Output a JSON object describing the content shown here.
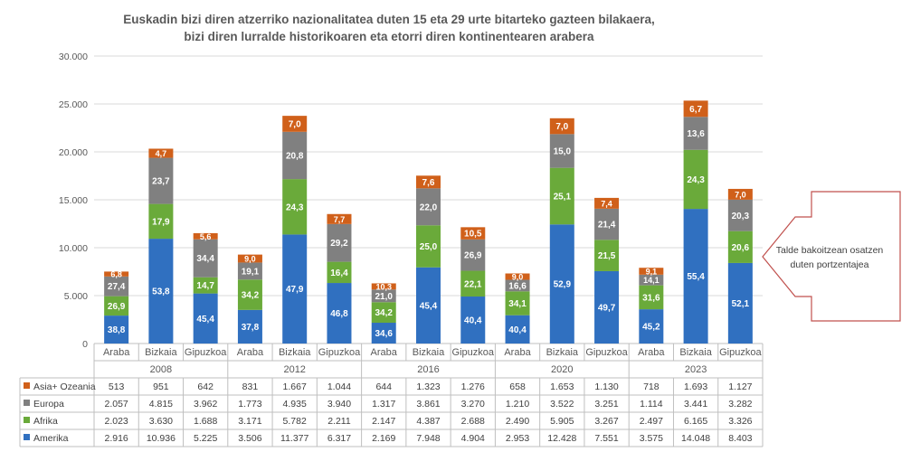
{
  "title_line1": "Euskadin bizi diren atzerriko nazionalitatea duten 15 eta 29 urte bitarteko gazteen bilakaera,",
  "title_line2": "bizi diren lurralde historikoaren eta etorri diren kontinentearen arabera",
  "callout_line1": "Talde bakoitzean osatzen",
  "callout_line2": "duten portzentajea",
  "colors": {
    "Amerika": "#3070c0",
    "Afrika": "#6aaa3a",
    "Europa": "#808080",
    "Asia+ Ozeania": "#d0601a",
    "grid": "#d9d9d9",
    "callout_border": "#c0504d"
  },
  "chart_data": {
    "type": "bar",
    "stacked": true,
    "ylim": [
      0,
      30000
    ],
    "yticks": [
      "0",
      "5.000",
      "10.000",
      "15.000",
      "20.000",
      "25.000",
      "30.000"
    ],
    "grid": true,
    "legend": "table-bottom",
    "years": [
      "2008",
      "2012",
      "2016",
      "2020",
      "2023"
    ],
    "categories": [
      "Araba",
      "Bizkaia",
      "Gipuzkoa",
      "Araba",
      "Bizkaia",
      "Gipuzkoa",
      "Araba",
      "Bizkaia",
      "Gipuzkoa",
      "Araba",
      "Bizkaia",
      "Gipuzkoa",
      "Araba",
      "Bizkaia",
      "Gipuzkoa"
    ],
    "series": [
      {
        "name": "Amerika",
        "values": [
          2916,
          10936,
          5225,
          3506,
          11377,
          6317,
          2169,
          7948,
          4904,
          2953,
          12428,
          7551,
          3575,
          14048,
          8403
        ],
        "display": [
          "2.916",
          "10.936",
          "5.225",
          "3.506",
          "11.377",
          "6.317",
          "2.169",
          "7.948",
          "4.904",
          "2.953",
          "12.428",
          "7.551",
          "3.575",
          "14.048",
          "8.403"
        ],
        "pct": [
          "38,8",
          "53,8",
          "45,4",
          "37,8",
          "47,9",
          "46,8",
          "34,6",
          "45,4",
          "40,4",
          "40,4",
          "52,9",
          "49,7",
          "45,2",
          "55,4",
          "52,1"
        ]
      },
      {
        "name": "Afrika",
        "values": [
          2023,
          3630,
          1688,
          3171,
          5782,
          2211,
          2147,
          4387,
          2688,
          2490,
          5905,
          3267,
          2497,
          6165,
          3326
        ],
        "display": [
          "2.023",
          "3.630",
          "1.688",
          "3.171",
          "5.782",
          "2.211",
          "2.147",
          "4.387",
          "2.688",
          "2.490",
          "5.905",
          "3.267",
          "2.497",
          "6.165",
          "3.326"
        ],
        "pct": [
          "26,9",
          "17,9",
          "14,7",
          "34,2",
          "24,3",
          "16,4",
          "34,2",
          "25,0",
          "22,1",
          "34,1",
          "25,1",
          "21,5",
          "31,6",
          "24,3",
          "20,6"
        ]
      },
      {
        "name": "Europa",
        "values": [
          2057,
          4815,
          3962,
          1773,
          4935,
          3940,
          1317,
          3861,
          3270,
          1210,
          3522,
          3251,
          1114,
          3441,
          3282
        ],
        "display": [
          "2.057",
          "4.815",
          "3.962",
          "1.773",
          "4.935",
          "3.940",
          "1.317",
          "3.861",
          "3.270",
          "1.210",
          "3.522",
          "3.251",
          "1.114",
          "3.441",
          "3.282"
        ],
        "pct": [
          "27,4",
          "23,7",
          "34,4",
          "19,1",
          "20,8",
          "29,2",
          "21,0",
          "22,0",
          "26,9",
          "16,6",
          "15,0",
          "21,4",
          "14,1",
          "13,6",
          "20,3"
        ]
      },
      {
        "name": "Asia+ Ozeania",
        "values": [
          513,
          951,
          642,
          831,
          1667,
          1044,
          644,
          1323,
          1276,
          658,
          1653,
          1130,
          718,
          1693,
          1127
        ],
        "display": [
          "513",
          "951",
          "642",
          "831",
          "1.667",
          "1.044",
          "644",
          "1.323",
          "1.276",
          "658",
          "1.653",
          "1.130",
          "718",
          "1.693",
          "1.127"
        ],
        "pct": [
          "6,8",
          "4,7",
          "5,6",
          "9,0",
          "7,0",
          "7,7",
          "10,3",
          "7,6",
          "10,5",
          "9,0",
          "7,0",
          "7,4",
          "9,1",
          "6,7",
          "7,0"
        ]
      }
    ]
  }
}
